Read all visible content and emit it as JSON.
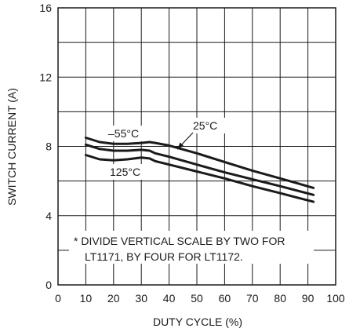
{
  "chart_data": {
    "type": "line",
    "xlabel": "DUTY CYCLE (%)",
    "ylabel": "SWITCH CURRENT (A)",
    "xlim": [
      0,
      100
    ],
    "ylim": [
      0,
      16
    ],
    "x_ticks": [
      0,
      10,
      20,
      30,
      40,
      50,
      60,
      70,
      80,
      90,
      100
    ],
    "y_ticks": [
      0,
      4,
      8,
      12,
      16
    ],
    "grid": true,
    "series": [
      {
        "name": "–55°C",
        "x": [
          10,
          15,
          20,
          25,
          30,
          33,
          35,
          40,
          50,
          60,
          70,
          80,
          92
        ],
        "y": [
          8.5,
          8.25,
          8.15,
          8.15,
          8.2,
          8.25,
          8.2,
          8.05,
          7.6,
          7.1,
          6.6,
          6.15,
          5.6
        ]
      },
      {
        "name": "25°C",
        "x": [
          10,
          15,
          20,
          25,
          30,
          33,
          35,
          40,
          50,
          60,
          70,
          80,
          92
        ],
        "y": [
          8.1,
          7.85,
          7.75,
          7.75,
          7.8,
          7.75,
          7.6,
          7.4,
          6.95,
          6.5,
          6.1,
          5.7,
          5.2
        ]
      },
      {
        "name": "125°C",
        "x": [
          10,
          15,
          20,
          25,
          30,
          33,
          35,
          40,
          50,
          60,
          70,
          80,
          92
        ],
        "y": [
          7.5,
          7.25,
          7.2,
          7.25,
          7.35,
          7.3,
          7.15,
          6.95,
          6.55,
          6.15,
          5.7,
          5.3,
          4.8
        ]
      }
    ],
    "annotation": {
      "line1": "* DIVIDE VERTICAL SCALE BY TWO FOR",
      "line2": "LT1171, BY FOUR FOR LT1172."
    }
  },
  "colors": {
    "line": "#1a1a1a",
    "grid": "#1a1a1a",
    "background": "#ffffff"
  }
}
